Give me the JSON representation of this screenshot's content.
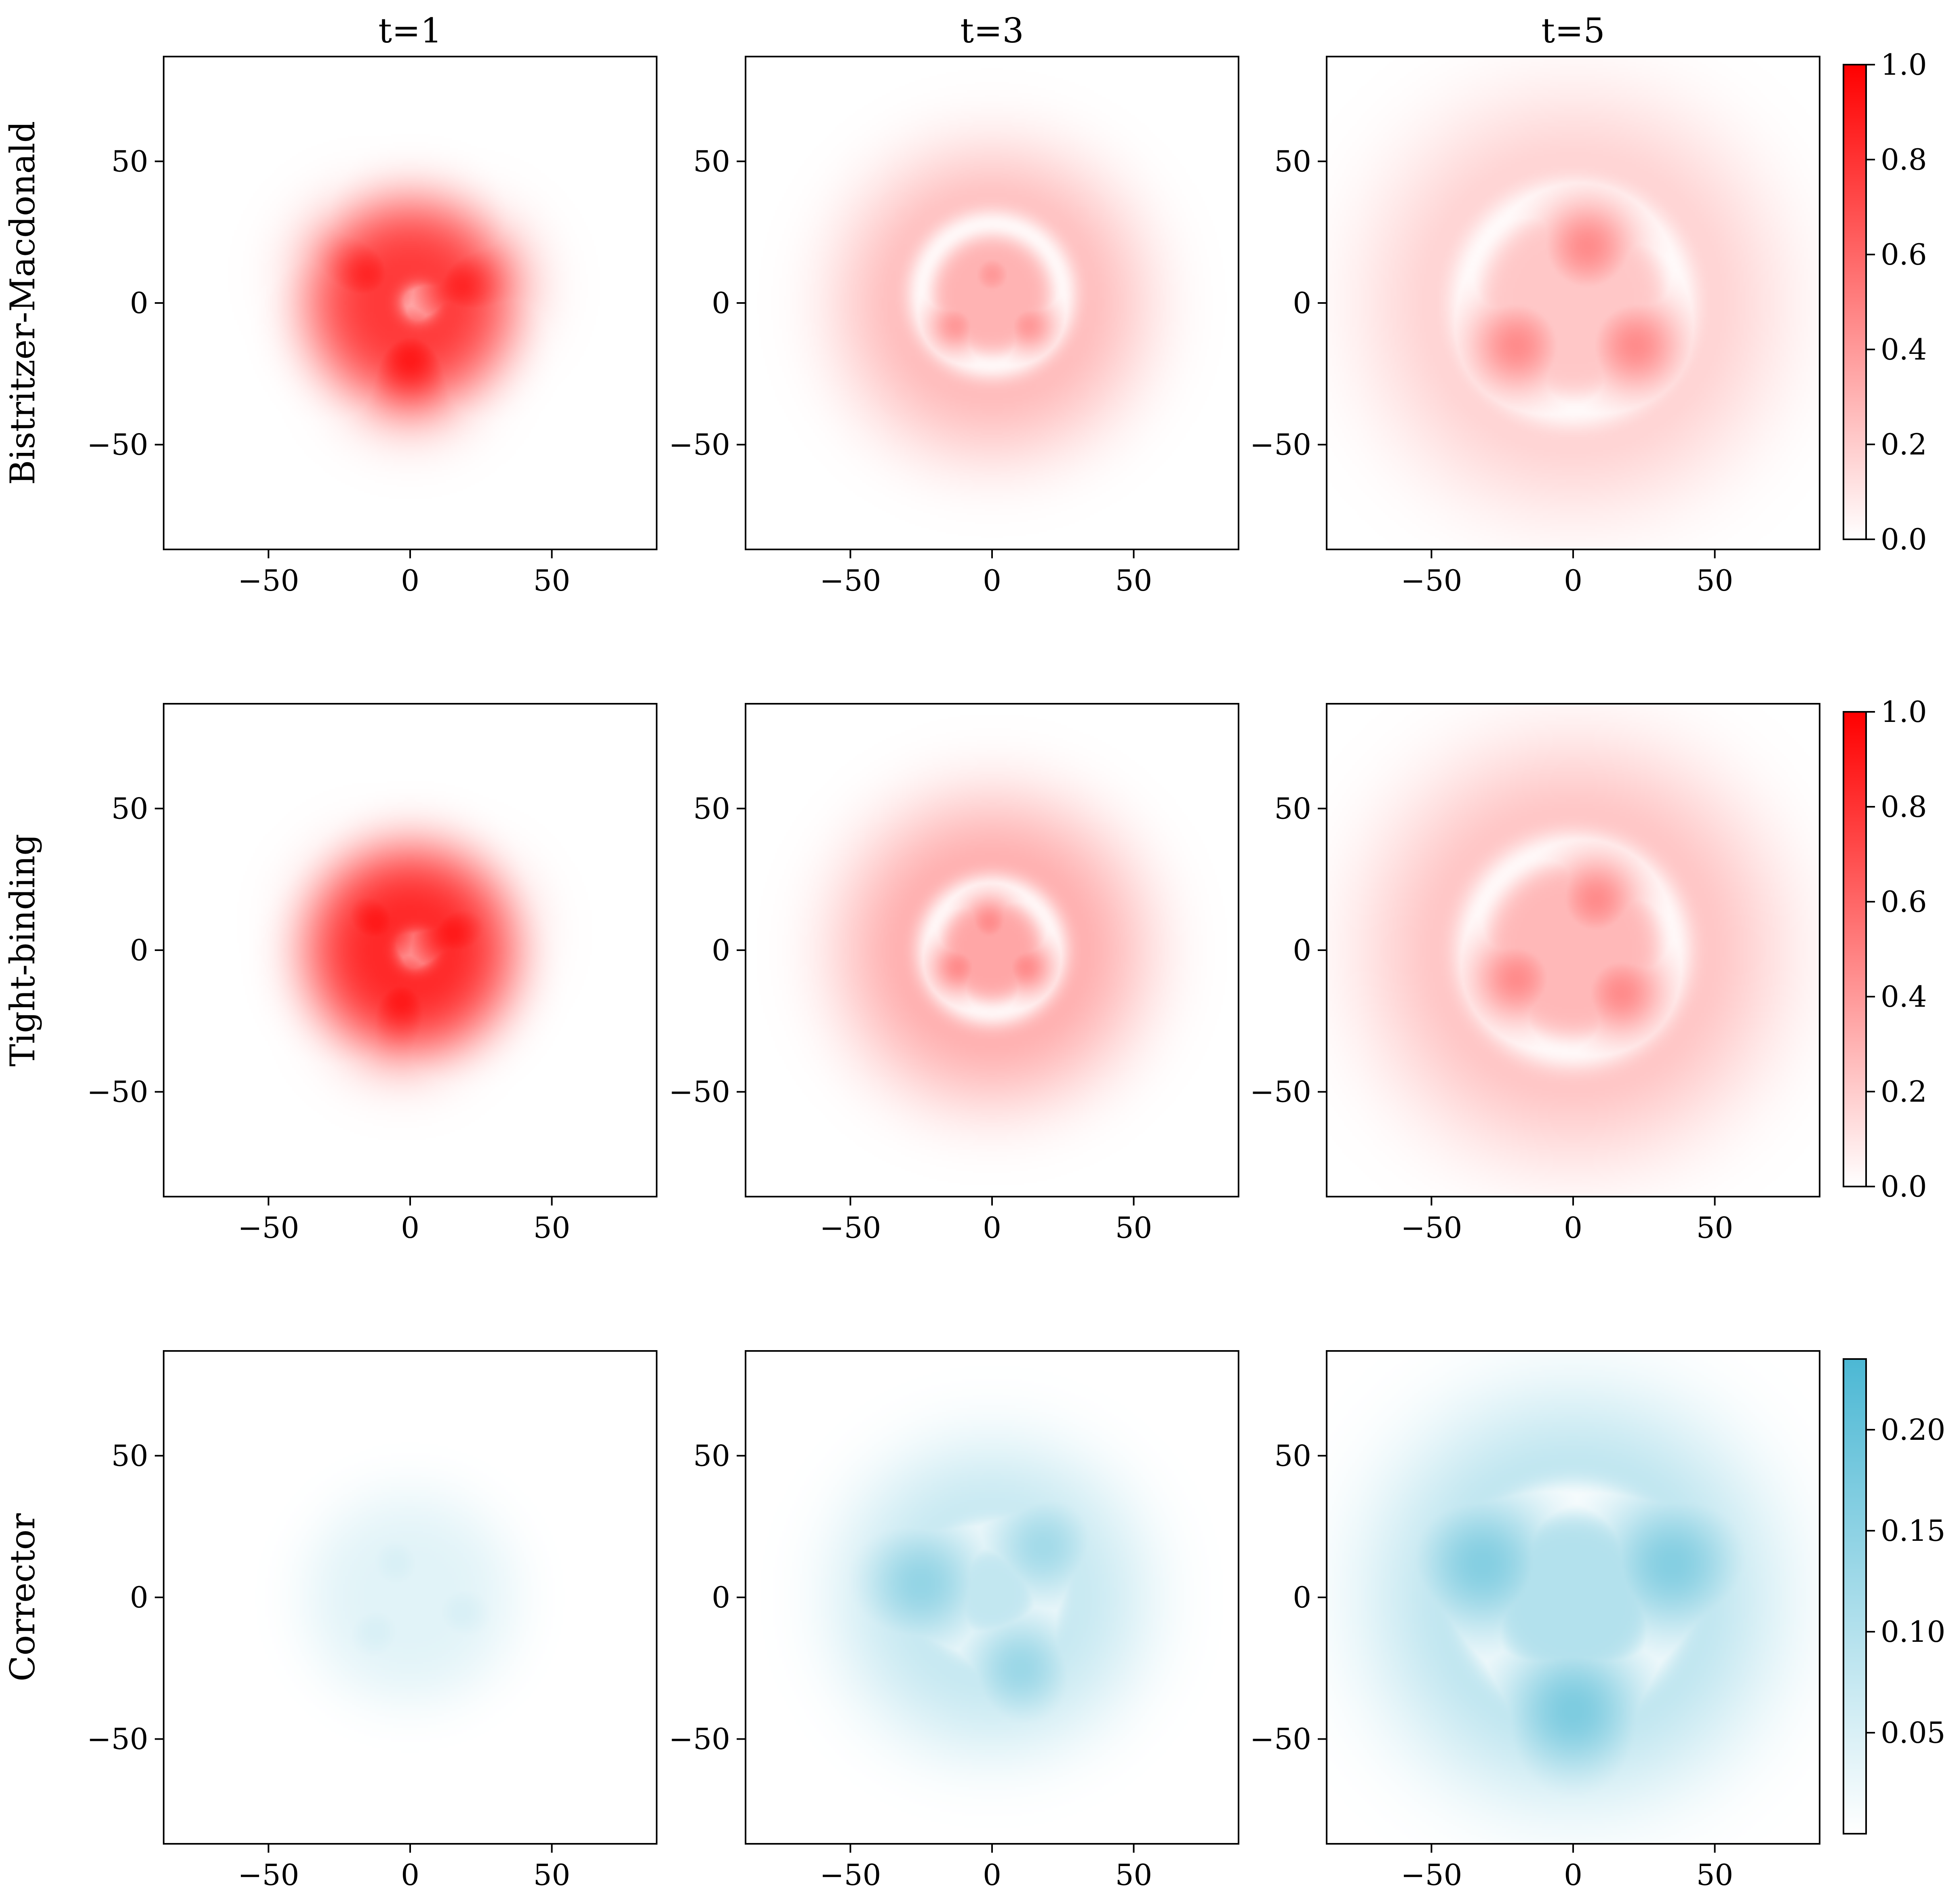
{
  "chart_data": {
    "type": "heatmap",
    "column_titles": [
      "t=1",
      "t=3",
      "t=5"
    ],
    "row_labels": [
      "Bistritzer-Macdonald",
      "Tight-binding",
      "Corrector"
    ],
    "xlim": [
      -87,
      87
    ],
    "ylim": [
      -87,
      87
    ],
    "xticks": [
      -50,
      0,
      50
    ],
    "yticks": [
      -50,
      0,
      50
    ],
    "tick_labels": [
      "−50",
      "0",
      "50"
    ],
    "colormaps": {
      "red": {
        "low": "#ffffff",
        "high": "#ff0000"
      },
      "cyan": {
        "low": "#ffffff",
        "high": "#4cb8d4"
      }
    },
    "colorbars": [
      {
        "row": 0,
        "cmap": "red",
        "range": [
          0.0,
          1.0
        ],
        "ticks": [
          0.0,
          0.2,
          0.4,
          0.6,
          0.8,
          1.0
        ],
        "tick_labels": [
          "0.0",
          "0.2",
          "0.4",
          "0.6",
          "0.8",
          "1.0"
        ]
      },
      {
        "row": 1,
        "cmap": "red",
        "range": [
          0.0,
          1.0
        ],
        "ticks": [
          0.0,
          0.2,
          0.4,
          0.6,
          0.8,
          1.0
        ],
        "tick_labels": [
          "0.0",
          "0.2",
          "0.4",
          "0.6",
          "0.8",
          "1.0"
        ]
      },
      {
        "row": 2,
        "cmap": "cyan",
        "range": [
          0.0,
          0.235
        ],
        "ticks": [
          0.05,
          0.1,
          0.15,
          0.2
        ],
        "tick_labels": [
          "0.05",
          "0.10",
          "0.15",
          "0.20"
        ]
      }
    ],
    "panels": [
      {
        "row": 0,
        "col": 0,
        "cmap": "red",
        "envelope_radius": 38,
        "envelope_peak": 0.78,
        "features": [
          {
            "type": "hole",
            "x": 3,
            "y": 0,
            "radius": 4
          },
          {
            "type": "blob",
            "x": -15,
            "y": 10,
            "radius": 14,
            "value": 0.85
          },
          {
            "type": "blob",
            "x": 18,
            "y": 6,
            "radius": 14,
            "value": 0.85
          },
          {
            "type": "blob",
            "x": 0,
            "y": -20,
            "radius": 14,
            "value": 0.9
          }
        ]
      },
      {
        "row": 0,
        "col": 1,
        "cmap": "red",
        "envelope_radius": 55,
        "envelope_peak": 0.3,
        "features": [
          {
            "type": "ring",
            "x": 0,
            "y": 3,
            "radius": 25,
            "width": 4
          },
          {
            "type": "blob",
            "x": 0,
            "y": 10,
            "radius": 7,
            "value": 0.4
          },
          {
            "type": "blob",
            "x": -13,
            "y": -8,
            "radius": 7,
            "value": 0.4
          },
          {
            "type": "blob",
            "x": 13,
            "y": -8,
            "radius": 7,
            "value": 0.4
          }
        ]
      },
      {
        "row": 0,
        "col": 2,
        "cmap": "red",
        "envelope_radius": 72,
        "envelope_peak": 0.22,
        "features": [
          {
            "type": "ring",
            "x": 0,
            "y": 0,
            "radius": 38,
            "width": 5
          },
          {
            "type": "blob",
            "x": 5,
            "y": 20,
            "radius": 12,
            "value": 0.45
          },
          {
            "type": "blob",
            "x": -20,
            "y": -15,
            "radius": 12,
            "value": 0.45
          },
          {
            "type": "blob",
            "x": 22,
            "y": -15,
            "radius": 12,
            "value": 0.45
          }
        ]
      },
      {
        "row": 1,
        "col": 0,
        "cmap": "red",
        "envelope_radius": 38,
        "envelope_peak": 0.85,
        "features": [
          {
            "type": "hole",
            "x": 2,
            "y": 0,
            "radius": 4
          },
          {
            "type": "blob",
            "x": -12,
            "y": 10,
            "radius": 14,
            "value": 0.9
          },
          {
            "type": "blob",
            "x": 15,
            "y": 6,
            "radius": 14,
            "value": 0.9
          },
          {
            "type": "blob",
            "x": -3,
            "y": -18,
            "radius": 14,
            "value": 0.9
          }
        ]
      },
      {
        "row": 1,
        "col": 1,
        "cmap": "red",
        "envelope_radius": 55,
        "envelope_peak": 0.35,
        "features": [
          {
            "type": "ring",
            "x": 0,
            "y": 0,
            "radius": 22,
            "width": 4
          },
          {
            "type": "blob",
            "x": -1,
            "y": 10,
            "radius": 7,
            "value": 0.45
          },
          {
            "type": "blob",
            "x": -12,
            "y": -6,
            "radius": 7,
            "value": 0.45
          },
          {
            "type": "blob",
            "x": 12,
            "y": -6,
            "radius": 7,
            "value": 0.45
          }
        ]
      },
      {
        "row": 1,
        "col": 2,
        "cmap": "red",
        "envelope_radius": 72,
        "envelope_peak": 0.28,
        "features": [
          {
            "type": "ring",
            "x": 0,
            "y": 0,
            "radius": 36,
            "width": 5
          },
          {
            "type": "blob",
            "x": 8,
            "y": 18,
            "radius": 11,
            "value": 0.45
          },
          {
            "type": "blob",
            "x": -20,
            "y": -10,
            "radius": 11,
            "value": 0.45
          },
          {
            "type": "blob",
            "x": 17,
            "y": -15,
            "radius": 11,
            "value": 0.45
          }
        ]
      },
      {
        "row": 2,
        "col": 0,
        "cmap": "cyan",
        "envelope_radius": 38,
        "envelope_peak": 0.04,
        "features": [
          {
            "type": "blob",
            "x": -5,
            "y": 12,
            "radius": 10,
            "value": 0.05
          },
          {
            "type": "blob",
            "x": 18,
            "y": -5,
            "radius": 10,
            "value": 0.05
          },
          {
            "type": "blob",
            "x": -12,
            "y": -12,
            "radius": 10,
            "value": 0.05
          }
        ]
      },
      {
        "row": 2,
        "col": 1,
        "cmap": "cyan",
        "envelope_radius": 55,
        "envelope_peak": 0.08,
        "features": [
          {
            "type": "ring",
            "x": 0,
            "y": 2,
            "radius": 20,
            "width": 4
          },
          {
            "type": "blob",
            "x": -25,
            "y": 5,
            "radius": 16,
            "value": 0.14
          },
          {
            "type": "blob",
            "x": 10,
            "y": -25,
            "radius": 14,
            "value": 0.13
          },
          {
            "type": "blob",
            "x": 18,
            "y": 18,
            "radius": 14,
            "value": 0.12
          }
        ]
      },
      {
        "row": 2,
        "col": 2,
        "cmap": "cyan",
        "envelope_radius": 72,
        "envelope_peak": 0.1,
        "features": [
          {
            "type": "ring",
            "x": 0,
            "y": 0,
            "radius": 35,
            "width": 5
          },
          {
            "type": "blob",
            "x": -32,
            "y": 12,
            "radius": 18,
            "value": 0.16
          },
          {
            "type": "blob",
            "x": 35,
            "y": 12,
            "radius": 18,
            "value": 0.16
          },
          {
            "type": "blob",
            "x": 0,
            "y": -40,
            "radius": 18,
            "value": 0.17
          }
        ]
      }
    ]
  }
}
